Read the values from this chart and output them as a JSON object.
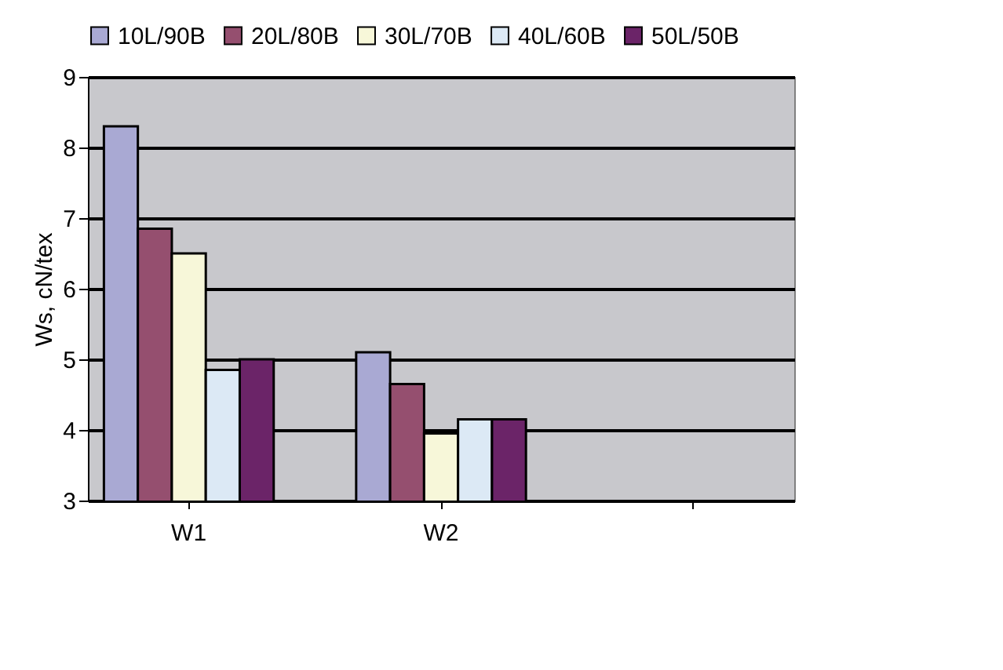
{
  "chart_data": {
    "type": "bar",
    "ylabel": "Ws, cN/tex",
    "categories": [
      "W1",
      "W2",
      null
    ],
    "series": [
      {
        "name": "10L/90B",
        "color": "#a9a9d3",
        "values": [
          8.3,
          5.1,
          null
        ]
      },
      {
        "name": "20L/80B",
        "color": "#954f6f",
        "values": [
          6.85,
          4.65,
          null
        ]
      },
      {
        "name": "30L/70B",
        "color": "#f7f7d9",
        "values": [
          6.5,
          3.95,
          null
        ]
      },
      {
        "name": "40L/60B",
        "color": "#dce9f5",
        "values": [
          4.85,
          4.15,
          null
        ]
      },
      {
        "name": "50L/50B",
        "color": "#6b2468",
        "values": [
          5.0,
          4.15,
          null
        ]
      }
    ],
    "ylim": [
      3,
      9
    ],
    "yticks": [
      3,
      4,
      5,
      6,
      7,
      8,
      9
    ],
    "grid": "y",
    "legend": "top"
  }
}
